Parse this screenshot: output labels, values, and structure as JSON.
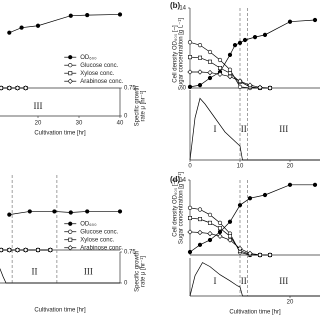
{
  "chart_data": [
    {
      "type": "line",
      "xlabel": "Cultivation time [hr]",
      "y2label": [
        "Specific growth",
        "rate μ [hr⁻¹]"
      ],
      "xlim": [
        0,
        40
      ],
      "xticks": [
        20,
        30,
        40
      ],
      "ylim": [
        0,
        14
      ],
      "y2lim": [
        0,
        0.75
      ],
      "y2ticks": [
        0,
        0.75
      ],
      "legend": "lower-center",
      "phases": {
        "labels": [
          "III"
        ]
      },
      "series": [
        {
          "name": "OD₆₀₀",
          "marker": "filled-circle",
          "color": "#000000",
          "x": [
            13,
            16,
            20,
            28,
            32,
            40
          ],
          "values": [
            8.8,
            9.6,
            9.9,
            11.5,
            11.6,
            11.7
          ]
        },
        {
          "name": "Glucose conc.",
          "marker": "open-circle",
          "color": "#000000",
          "x": [
            11,
            13,
            15,
            17
          ],
          "values": [
            0,
            0,
            0,
            0
          ]
        },
        {
          "name": "Xylose conc.",
          "marker": "open-square",
          "color": "#000000",
          "x": [
            11,
            13,
            15,
            17
          ],
          "values": [
            0,
            0,
            0,
            0
          ]
        },
        {
          "name": "Arabinose conc.",
          "marker": "open-diamond",
          "color": "#000000",
          "x": [
            11,
            13,
            15,
            17
          ],
          "values": [
            0,
            0,
            0,
            0
          ]
        }
      ]
    },
    {
      "type": "line",
      "title": "(b)",
      "ylabel": [
        "Cell density OD₆₀₀ [–]",
        "Sugar concentration [g L⁻¹]"
      ],
      "xlim": [
        0,
        26
      ],
      "xticks": [
        0,
        10,
        20
      ],
      "ylim": [
        0,
        14
      ],
      "yticks": [
        0,
        14
      ],
      "y2lim": [
        0,
        0.75
      ],
      "phases": {
        "labels": [
          "I",
          "II",
          "III"
        ],
        "boundaries": [
          10,
          11.5
        ]
      },
      "series": [
        {
          "marker": "filled-circle",
          "color": "#000000",
          "x": [
            0,
            2,
            4,
            6,
            8,
            9,
            10,
            11,
            13,
            15,
            20,
            25
          ],
          "values": [
            0.2,
            0.5,
            1.75,
            2.8,
            5.8,
            7.5,
            7.9,
            8.4,
            8.9,
            9.3,
            11.6,
            11.9
          ]
        },
        {
          "marker": "open-circle",
          "color": "#000000",
          "x": [
            0,
            2,
            4,
            6,
            8,
            10,
            12,
            14,
            16
          ],
          "values": [
            8.0,
            7.5,
            6.3,
            4.9,
            3.2,
            0.2,
            0,
            0,
            0
          ]
        },
        {
          "marker": "open-square",
          "color": "#000000",
          "x": [
            0,
            2,
            4,
            6,
            8,
            10,
            12,
            14,
            16
          ],
          "values": [
            5.4,
            5.3,
            4.6,
            3.5,
            2.6,
            1.1,
            0.2,
            0,
            0
          ]
        },
        {
          "marker": "open-diamond",
          "color": "#000000",
          "x": [
            0,
            2,
            4,
            6,
            8,
            10,
            12,
            14,
            16
          ],
          "values": [
            2.8,
            2.8,
            2.7,
            2.4,
            2.0,
            1.2,
            0.5,
            0.1,
            0
          ]
        },
        {
          "marker": "none",
          "color": "#000000",
          "axis": "y2",
          "x": [
            0,
            1,
            2,
            3,
            5,
            7,
            9,
            10,
            10.5,
            12,
            14,
            20,
            26
          ],
          "values": [
            0,
            0.45,
            0.66,
            0.6,
            0.45,
            0.3,
            0.2,
            0.15,
            0,
            0,
            0,
            0,
            0
          ]
        }
      ]
    },
    {
      "type": "line",
      "xlabel": "Cultivation time [hr]",
      "y2label": [
        "Specific growth",
        "rate μ [hr⁻¹]"
      ],
      "xlim": [
        0,
        40
      ],
      "ylim": [
        0,
        14
      ],
      "y2lim": [
        0,
        0.75
      ],
      "y2ticks": [
        0,
        0.75
      ],
      "legend": "lower-center",
      "phases": {
        "labels": [
          "II",
          "III"
        ],
        "boundaries": [
          13.7,
          24.6
        ]
      },
      "series": [
        {
          "name": "OD₆₀₀",
          "marker": "filled-circle",
          "color": "#000000",
          "x": [
            13,
            18,
            24,
            28,
            32,
            40
          ],
          "values": [
            6.6,
            7.2,
            7.2,
            7.0,
            7.2,
            7.2
          ]
        },
        {
          "name": "Glucose conc.",
          "marker": "open-circle",
          "color": "#000000",
          "x": [
            11,
            13,
            15,
            17,
            20,
            23
          ],
          "values": [
            0,
            0,
            0,
            0,
            0,
            0
          ]
        },
        {
          "name": "Xylose conc.",
          "marker": "open-square",
          "color": "#000000",
          "x": [
            11,
            13,
            15,
            17,
            20,
            23
          ],
          "values": [
            0,
            0,
            0,
            0,
            0,
            0
          ]
        },
        {
          "name": "Arabinose conc.",
          "marker": "open-diamond",
          "color": "#000000",
          "x": [
            11,
            13,
            15,
            17,
            20,
            23
          ],
          "values": [
            0,
            0,
            0,
            0,
            0,
            0
          ]
        },
        {
          "marker": "none",
          "color": "#000000",
          "axis": "y2",
          "x": [
            10.7,
            11.5,
            12.2,
            40
          ],
          "values": [
            0.35,
            0.15,
            0,
            0
          ]
        }
      ]
    },
    {
      "type": "line",
      "title": "(d)",
      "xlabel": "Cultivation time [hr]",
      "ylabel": [
        "Cell density OD₆₀₀ [–]",
        "Sugar concentration [g L⁻¹]"
      ],
      "xlim": [
        0,
        26
      ],
      "xticks": [
        20
      ],
      "ylim": [
        0,
        14
      ],
      "yticks": [
        14
      ],
      "y2lim": [
        0,
        0.75
      ],
      "phases": {
        "labels": [
          "I",
          "II",
          "III"
        ],
        "boundaries": [
          10,
          11.5
        ]
      },
      "series": [
        {
          "marker": "filled-circle",
          "color": "#000000",
          "x": [
            0,
            2,
            4,
            6,
            8,
            10,
            12,
            15,
            20,
            25
          ],
          "values": [
            0.56,
            1.9,
            2.8,
            4.3,
            6.2,
            9.3,
            10.6,
            11.2,
            13.1,
            13.1
          ]
        },
        {
          "marker": "open-circle",
          "color": "#000000",
          "x": [
            0,
            2,
            4,
            6,
            8,
            10,
            12,
            14,
            16
          ],
          "values": [
            8.8,
            8.5,
            7.5,
            6.0,
            4.0,
            0.5,
            0,
            0,
            0
          ]
        },
        {
          "marker": "open-square",
          "color": "#000000",
          "x": [
            0,
            2,
            4,
            6,
            8,
            10,
            12,
            14,
            16
          ],
          "values": [
            6.9,
            6.7,
            6.0,
            5.0,
            3.5,
            0.8,
            0.1,
            0,
            0
          ]
        },
        {
          "marker": "open-diamond",
          "color": "#000000",
          "x": [
            0,
            2,
            4,
            6,
            8,
            10,
            12,
            14,
            16
          ],
          "values": [
            4.3,
            4.2,
            4.0,
            3.5,
            2.8,
            1.2,
            0.3,
            0,
            0
          ]
        },
        {
          "marker": "none",
          "color": "#000000",
          "axis": "y2",
          "x": [
            0,
            1,
            2.5,
            4,
            6,
            8,
            9.5,
            10,
            10.5,
            14,
            26
          ],
          "values": [
            0,
            0.4,
            0.66,
            0.58,
            0.42,
            0.3,
            0.2,
            0.18,
            0,
            0,
            0
          ]
        }
      ]
    }
  ]
}
